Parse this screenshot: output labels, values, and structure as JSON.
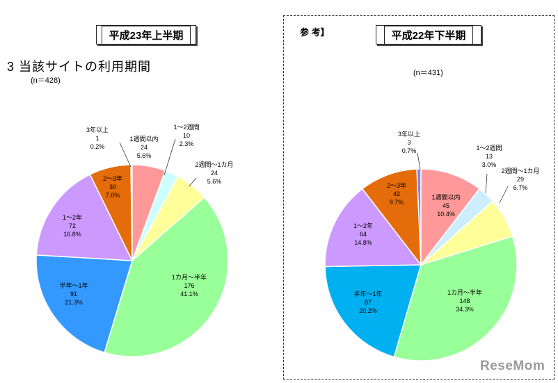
{
  "header": {
    "left_period": "平成23年上半期",
    "right_period": "平成22年下半期",
    "ref_label": "参 考】",
    "section_title": "3 当該サイトの利用期間",
    "left_n": "(n＝428)",
    "right_n": "(n＝431)"
  },
  "logo": {
    "text": "ReseMom"
  },
  "chart_data": [
    {
      "type": "pie",
      "title": "平成23年上半期",
      "n": 428,
      "slices": [
        {
          "label": "3年以上",
          "count": 1,
          "percent": 0.2,
          "color": "#7F7FFF"
        },
        {
          "label": "1週間以内",
          "count": 24,
          "percent": 5.6,
          "color": "#FF9999"
        },
        {
          "label": "1～2週間",
          "count": 10,
          "percent": 2.3,
          "color": "#CCFFFF"
        },
        {
          "label": "2週間～1カ月",
          "count": 24,
          "percent": 5.6,
          "color": "#FFFF99"
        },
        {
          "label": "1カ月～半年",
          "count": 176,
          "percent": 41.1,
          "color": "#99FF99"
        },
        {
          "label": "半年～1年",
          "count": 91,
          "percent": 21.3,
          "color": "#3399FF"
        },
        {
          "label": "1～2年",
          "count": 72,
          "percent": 16.8,
          "color": "#CC99FF"
        },
        {
          "label": "2～3年",
          "count": 30,
          "percent": 7.0,
          "color": "#E46C0A"
        }
      ]
    },
    {
      "type": "pie",
      "title": "平成22年下半期",
      "n": 431,
      "slices": [
        {
          "label": "3年以上",
          "count": 3,
          "percent": 0.7,
          "color": "#7F7FFF"
        },
        {
          "label": "1週間以内",
          "count": 45,
          "percent": 10.4,
          "color": "#FF9999"
        },
        {
          "label": "1～2週間",
          "count": 13,
          "percent": 3.0,
          "color": "#CCEEFF"
        },
        {
          "label": "2週間～1カ月",
          "count": 29,
          "percent": 6.7,
          "color": "#FFFF99"
        },
        {
          "label": "1カ月～半年",
          "count": 148,
          "percent": 34.3,
          "color": "#99FF99"
        },
        {
          "label": "半年～1年",
          "count": 87,
          "percent": 20.2,
          "color": "#00B0F0"
        },
        {
          "label": "1～2年",
          "count": 64,
          "percent": 14.8,
          "color": "#CC99FF"
        },
        {
          "label": "2～3年",
          "count": 42,
          "percent": 9.7,
          "color": "#E46C0A"
        }
      ]
    }
  ]
}
